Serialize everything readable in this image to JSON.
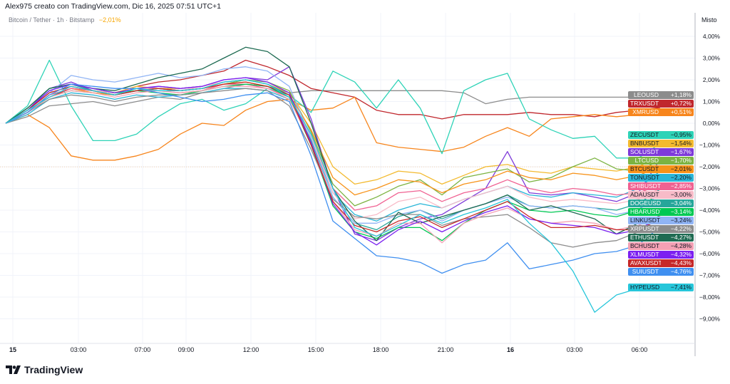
{
  "header": {
    "attribution": "Alex975 creato con TradingView.com, Dic 16, 2025 07:51 UTC+1"
  },
  "legend": {
    "symbol": "Bitcoin / Tether · 1h · Bitstamp",
    "change": "−2,01%"
  },
  "axis": {
    "scale_mode": "Misto"
  },
  "logo": {
    "text": "TradingView"
  },
  "chart_data": {
    "type": "line",
    "title": "",
    "xlabel": "",
    "ylabel": "",
    "ylim": [
      -9.7,
      4.5
    ],
    "y_unit": "%",
    "y_ticks": [
      "4,00%",
      "3,00%",
      "2,00%",
      "1,00%",
      "0,00%",
      "−1,00%",
      "−2,00%",
      "−3,00%",
      "−4,00%",
      "−5,00%",
      "−6,00%",
      "−7,00%",
      "−8,00%",
      "−9,00%"
    ],
    "x_ticks": [
      "15",
      "03:00",
      "07:00",
      "09:00",
      "12:00",
      "15:00",
      "18:00",
      "21:00",
      "16",
      "03:00",
      "06:00"
    ],
    "x_interval": "1h",
    "grid": true,
    "legend_placement": "right-axis tags",
    "series": [
      {
        "name": "LEOUSD",
        "label": "+1,18%",
        "color": "#8c8c8c",
        "text": "#fff",
        "values": [
          0,
          0.3,
          0.8,
          0.9,
          1.0,
          0.8,
          1.0,
          1.2,
          1.1,
          1.4,
          1.6,
          1.8,
          1.7,
          1.4,
          1.5,
          1.5,
          1.5,
          1.5,
          1.5,
          1.5,
          1.5,
          1.4,
          0.9,
          1.1,
          1.2,
          1.2,
          1.2,
          1.2,
          1.2,
          1.2,
          1.18
        ]
      },
      {
        "name": "TRXUSDT",
        "label": "+0,72%",
        "color": "#c0272d",
        "text": "#fff",
        "values": [
          0,
          0.5,
          1.2,
          1.6,
          1.5,
          1.4,
          1.7,
          1.9,
          2.0,
          2.2,
          2.4,
          2.9,
          2.6,
          2.2,
          1.6,
          1.4,
          1.2,
          0.6,
          0.4,
          0.4,
          0.2,
          0.4,
          0.4,
          0.4,
          0.5,
          0.4,
          0.4,
          0.3,
          0.5,
          0.6,
          0.72
        ]
      },
      {
        "name": "XMRUSD",
        "label": "+0,51%",
        "color": "#f7851c",
        "text": "#fff",
        "values": [
          0,
          0.4,
          -0.2,
          -1.5,
          -1.7,
          -1.7,
          -1.5,
          -1.2,
          -0.5,
          0,
          -0.1,
          0.6,
          1.0,
          1.1,
          0.6,
          0.7,
          1.2,
          -0.9,
          -1.1,
          -1.2,
          -1.3,
          -1.1,
          -0.6,
          -0.2,
          -0.6,
          0.2,
          0.3,
          0.4,
          0.3,
          0.4,
          0.51
        ]
      },
      {
        "name": "ZECUSDT",
        "label": "−0,95%",
        "color": "#2ed3b7",
        "text": "#131722",
        "values": [
          0,
          0.8,
          2.9,
          0.8,
          -0.8,
          -0.8,
          -0.5,
          0.3,
          0.9,
          1.1,
          0.6,
          0.9,
          1.6,
          1.3,
          0.5,
          2.4,
          1.9,
          0.7,
          2.0,
          0.7,
          -1.4,
          1.5,
          2.0,
          2.3,
          0.2,
          -0.3,
          -0.7,
          -0.6,
          -1.6,
          -1.6,
          -0.95
        ]
      },
      {
        "name": "BNBUSDT",
        "label": "−1,54%",
        "color": "#f3ba2f",
        "text": "#131722",
        "values": [
          0,
          0.5,
          1.4,
          1.7,
          1.5,
          1.4,
          1.7,
          1.6,
          1.6,
          1.7,
          1.9,
          2.0,
          1.8,
          1.4,
          0,
          -2.0,
          -2.8,
          -2.6,
          -2.2,
          -2.3,
          -2.8,
          -2.4,
          -2.0,
          -1.9,
          -2.2,
          -2.3,
          -2.0,
          -2.1,
          -2.2,
          -2.0,
          -1.54
        ]
      },
      {
        "name": "SOLUSDT",
        "label": "−1,67%",
        "color": "#7e3ad9",
        "text": "#fff",
        "values": [
          0,
          0.6,
          1.6,
          1.9,
          1.5,
          1.3,
          1.5,
          1.7,
          1.6,
          1.7,
          2.0,
          2.1,
          2.0,
          2.6,
          0.2,
          -3.0,
          -5.1,
          -5.4,
          -4.8,
          -4.4,
          -4.2,
          -3.6,
          -3.0,
          -1.3,
          -3.2,
          -3.3,
          -3.2,
          -3.4,
          -3.6,
          -3.2,
          -1.67
        ]
      },
      {
        "name": "LTCUSD",
        "label": "−1,70%",
        "color": "#7cb342",
        "text": "#fff",
        "values": [
          0,
          0.5,
          1.2,
          1.5,
          1.4,
          1.3,
          1.5,
          1.6,
          1.5,
          1.6,
          1.8,
          2.0,
          1.9,
          1.5,
          -0.4,
          -2.8,
          -3.8,
          -3.4,
          -2.9,
          -2.6,
          -3.3,
          -2.5,
          -2.3,
          -2.1,
          -2.7,
          -2.5,
          -2.0,
          -1.6,
          -2.1,
          -2.2,
          -1.7
        ]
      },
      {
        "name": "BTCUSDT",
        "label": "−2,01%",
        "color": "#f7931a",
        "text": "#131722",
        "values": [
          0,
          0.5,
          1.3,
          1.6,
          1.4,
          1.3,
          1.6,
          1.6,
          1.5,
          1.6,
          1.8,
          1.9,
          1.7,
          1.3,
          -0.3,
          -2.5,
          -3.3,
          -3.0,
          -2.6,
          -2.7,
          -3.2,
          -2.8,
          -2.6,
          -2.2,
          -2.5,
          -2.6,
          -2.3,
          -2.4,
          -2.6,
          -2.4,
          -2.01
        ]
      },
      {
        "name": "TONUSDT",
        "label": "−2,20%",
        "color": "#29b6d8",
        "text": "#131722",
        "values": [
          0,
          0.4,
          1.1,
          1.4,
          1.3,
          1.1,
          1.3,
          1.2,
          1.3,
          1.4,
          1.6,
          1.6,
          1.5,
          1.1,
          -0.8,
          -3.2,
          -4.2,
          -4.5,
          -4.0,
          -3.7,
          -3.9,
          -3.5,
          -3.2,
          -2.9,
          -3.3,
          -3.4,
          -3.2,
          -3.3,
          -3.4,
          -3.0,
          -2.2
        ]
      },
      {
        "name": "SHIBUSDT",
        "label": "−2,85%",
        "color": "#f06292",
        "text": "#fff",
        "values": [
          0,
          0.5,
          1.3,
          1.6,
          1.5,
          1.3,
          1.5,
          1.5,
          1.4,
          1.5,
          1.8,
          1.8,
          1.6,
          1.2,
          -0.6,
          -3.0,
          -4.0,
          -3.8,
          -3.2,
          -3.1,
          -3.6,
          -3.2,
          -3.0,
          -2.6,
          -3.0,
          -3.2,
          -3.0,
          -3.1,
          -3.3,
          -3.2,
          -2.85
        ]
      },
      {
        "name": "ADAUSDT",
        "label": "−3,00%",
        "color": "#f8bbc8",
        "text": "#131722",
        "values": [
          0,
          0.5,
          1.4,
          1.7,
          1.5,
          1.4,
          1.6,
          1.6,
          1.5,
          1.7,
          1.9,
          2.0,
          1.8,
          1.3,
          -0.6,
          -3.2,
          -4.4,
          -4.2,
          -3.6,
          -3.4,
          -3.9,
          -3.5,
          -3.2,
          -2.9,
          -3.4,
          -3.6,
          -3.5,
          -3.6,
          -3.7,
          -3.5,
          -3.0
        ]
      },
      {
        "name": "DOGEUSDT",
        "label": "−3,04%",
        "color": "#26a69a",
        "text": "#fff",
        "values": [
          0,
          0.6,
          1.5,
          1.8,
          1.5,
          1.3,
          1.5,
          1.6,
          1.5,
          1.6,
          1.9,
          2.0,
          1.8,
          1.3,
          -0.8,
          -3.4,
          -4.6,
          -4.9,
          -4.3,
          -4.0,
          -4.4,
          -4.0,
          -3.7,
          -3.3,
          -3.8,
          -3.9,
          -3.8,
          -3.9,
          -4.0,
          -3.7,
          -3.04
        ]
      },
      {
        "name": "HBARUSDT",
        "label": "−3,14%",
        "color": "#00c853",
        "text": "#fff",
        "values": [
          0,
          0.7,
          1.6,
          1.8,
          1.6,
          1.4,
          1.5,
          1.4,
          1.3,
          1.5,
          1.7,
          1.8,
          1.7,
          1.2,
          -1.0,
          -3.8,
          -5.0,
          -5.3,
          -4.8,
          -4.8,
          -5.4,
          -4.6,
          -4.0,
          -3.6,
          -4.0,
          -4.1,
          -4.0,
          -4.2,
          -4.3,
          -4.0,
          -3.14
        ]
      },
      {
        "name": "LINKUSDT",
        "label": "−3,24%",
        "color": "#90b4f5",
        "text": "#131722",
        "values": [
          0,
          0.6,
          1.4,
          2.2,
          2.0,
          1.9,
          2.1,
          2.3,
          2.1,
          2.2,
          2.5,
          2.6,
          2.4,
          1.7,
          -0.7,
          -3.4,
          -4.6,
          -4.6,
          -4.2,
          -4.0,
          -4.5,
          -4.0,
          -3.7,
          -3.4,
          -3.8,
          -3.9,
          -3.8,
          -3.9,
          -4.2,
          -4.0,
          -3.24
        ]
      },
      {
        "name": "XRPUSDT",
        "label": "−4,22%",
        "color": "#8c8c8c",
        "text": "#fff",
        "values": [
          0,
          0.5,
          1.1,
          1.3,
          1.2,
          1.0,
          1.2,
          1.3,
          1.3,
          1.4,
          1.5,
          1.6,
          1.5,
          0.8,
          -1.2,
          -3.5,
          -4.3,
          -4.4,
          -4.2,
          -4.2,
          -4.7,
          -4.4,
          -4.3,
          -4.2,
          -4.8,
          -5.5,
          -5.7,
          -5.5,
          -5.4,
          -5.0,
          -4.22
        ]
      },
      {
        "name": "ETHUSDT",
        "label": "−4,27%",
        "color": "#1e6b52",
        "text": "#fff",
        "values": [
          0,
          0.7,
          1.6,
          1.8,
          1.6,
          1.5,
          1.8,
          2.1,
          2.3,
          2.5,
          3.0,
          3.5,
          3.3,
          2.6,
          0,
          -3.0,
          -4.5,
          -5.4,
          -4.1,
          -4.6,
          -4.3,
          -4.0,
          -3.7,
          -3.3,
          -4.0,
          -3.8,
          -4.1,
          -4.4,
          -5.1,
          -4.6,
          -4.27
        ]
      },
      {
        "name": "BCHUSDT",
        "label": "−4,28%",
        "color": "#f4a0b4",
        "text": "#131722",
        "values": [
          0,
          0.5,
          1.2,
          1.5,
          1.4,
          1.2,
          1.4,
          1.5,
          1.4,
          1.5,
          1.7,
          1.7,
          1.6,
          1.1,
          -0.9,
          -3.6,
          -4.9,
          -5.2,
          -4.6,
          -4.6,
          -5.5,
          -4.6,
          -4.2,
          -3.9,
          -4.4,
          -4.6,
          -4.5,
          -4.6,
          -4.9,
          -4.7,
          -4.28
        ]
      },
      {
        "name": "XLMUSDT",
        "label": "−4,32%",
        "color": "#7c20f0",
        "text": "#fff",
        "values": [
          0,
          0.6,
          1.5,
          1.8,
          1.6,
          1.4,
          1.6,
          1.7,
          1.6,
          1.7,
          2.0,
          2.1,
          1.9,
          1.4,
          -0.9,
          -3.7,
          -5.0,
          -5.6,
          -4.9,
          -4.5,
          -5.0,
          -4.5,
          -4.1,
          -3.8,
          -4.4,
          -4.6,
          -4.7,
          -4.8,
          -5.1,
          -4.9,
          -4.32
        ]
      },
      {
        "name": "AVAXUSDT",
        "label": "−4,43%",
        "color": "#c62828",
        "text": "#fff",
        "values": [
          0,
          0.6,
          1.4,
          1.7,
          1.5,
          1.3,
          1.5,
          1.6,
          1.5,
          1.6,
          1.8,
          1.9,
          1.7,
          1.3,
          -1.0,
          -3.6,
          -4.7,
          -5.0,
          -4.5,
          -4.3,
          -4.8,
          -4.4,
          -4.0,
          -3.6,
          -4.3,
          -4.8,
          -4.8,
          -4.7,
          -4.9,
          -4.9,
          -4.43
        ]
      },
      {
        "name": "SUIUSDT",
        "label": "−4,76%",
        "color": "#3f8ff0",
        "text": "#fff",
        "values": [
          0,
          0.5,
          1.3,
          1.8,
          1.7,
          1.6,
          1.6,
          1.4,
          1.2,
          1.0,
          1.1,
          1.3,
          1.4,
          1.0,
          -1.5,
          -4.5,
          -5.3,
          -6.1,
          -6.2,
          -6.4,
          -6.9,
          -6.5,
          -6.3,
          -5.5,
          -6.7,
          -6.5,
          -6.3,
          -6.0,
          -5.9,
          -5.6,
          -4.76
        ]
      },
      {
        "name": "HYPEUSD",
        "label": "−7,41%",
        "color": "#26c6da",
        "text": "#131722",
        "values": [
          0,
          0.6,
          1.2,
          1.7,
          1.5,
          1.3,
          1.6,
          1.5,
          1.5,
          1.6,
          1.9,
          2.0,
          1.8,
          1.2,
          -0.5,
          -3.0,
          -4.8,
          -5.2,
          -4.7,
          -4.2,
          -4.6,
          -4.2,
          -3.9,
          -3.5,
          -4.6,
          -5.5,
          -6.8,
          -8.7,
          -7.9,
          -7.6,
          -7.41
        ]
      }
    ]
  }
}
